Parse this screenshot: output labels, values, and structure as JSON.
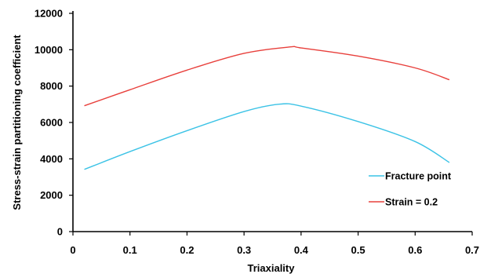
{
  "chart_data": {
    "type": "line",
    "title": "",
    "xlabel": "Triaxiality",
    "ylabel": "Stress-strain partitioning coefficient",
    "xlim": [
      0,
      0.7
    ],
    "ylim": [
      0,
      12000
    ],
    "x_ticks": [
      "0",
      "0.1",
      "0.2",
      "0.3",
      "0.4",
      "0.5",
      "0.6",
      "0.7"
    ],
    "y_ticks": [
      "0",
      "2000",
      "4000",
      "6000",
      "8000",
      "10000",
      "12000"
    ],
    "grid": false,
    "legend_position": "bottom-right",
    "series": [
      {
        "name": "Fracture point",
        "color": "#3cc3e6",
        "points": [
          [
            0.02,
            3420
          ],
          [
            0.1,
            4400
          ],
          [
            0.2,
            5550
          ],
          [
            0.3,
            6600
          ],
          [
            0.36,
            7000
          ],
          [
            0.4,
            6900
          ],
          [
            0.5,
            6050
          ],
          [
            0.6,
            4950
          ],
          [
            0.66,
            3800
          ]
        ]
      },
      {
        "name": "Strain = 0.2",
        "color": "#e8403c",
        "points": [
          [
            0.02,
            6920
          ],
          [
            0.1,
            7800
          ],
          [
            0.2,
            8880
          ],
          [
            0.3,
            9800
          ],
          [
            0.38,
            10150
          ],
          [
            0.4,
            10100
          ],
          [
            0.5,
            9650
          ],
          [
            0.6,
            9000
          ],
          [
            0.66,
            8350
          ]
        ]
      }
    ]
  }
}
